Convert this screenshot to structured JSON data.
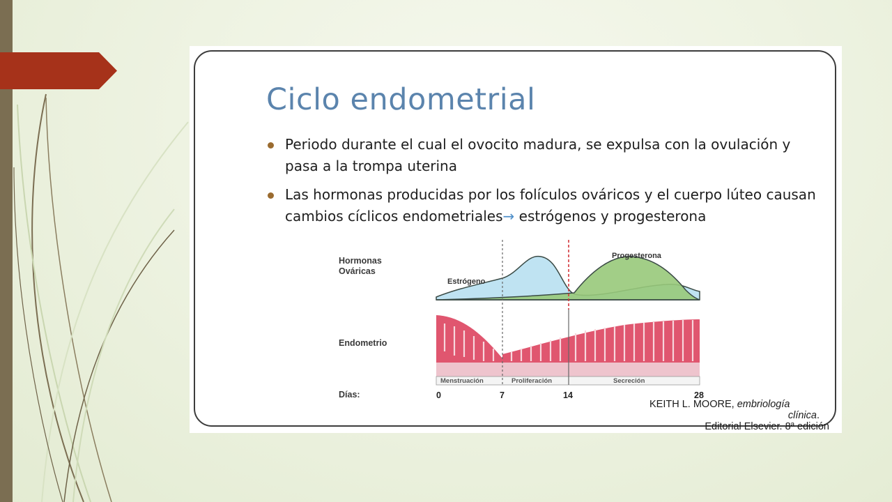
{
  "slide": {
    "title": "Ciclo endometrial",
    "bullets": [
      "Periodo durante el cual el ovocito madura, se expulsa con la ovulación y pasa a la trompa uterina",
      {
        "before": "Las hormonas producidas por los folículos ováricos y el cuerpo lúteo causan cambios cíclicos endometriales",
        "arrow": "→",
        "after": " estrógenos y progesterona"
      }
    ]
  },
  "diagram": {
    "label_hormones_1": "Hormonas",
    "label_hormones_2": "Ováricas",
    "label_estrogen": "Estrógeno",
    "label_progesterone": "Progesterona",
    "label_endometrium": "Endometrio",
    "phases": [
      "Menstruación",
      "Proliferación",
      "Secreción"
    ],
    "days_label": "Días:",
    "days": [
      "0",
      "7",
      "14",
      "28"
    ],
    "colors": {
      "estrogen": "#bfe3f2",
      "progesterone": "#98c97a",
      "endometrium": "#e0566f",
      "ovulation_line": "#d3353b"
    }
  },
  "credit": {
    "author": "KEITH L. MOORE,",
    "title_part1": "embriología",
    "title_part2": "clínica",
    "period": ".",
    "publisher": "Editorial Elsevier. 8ª edición"
  }
}
